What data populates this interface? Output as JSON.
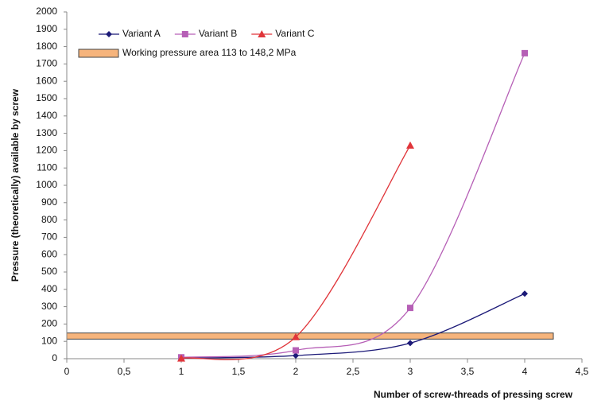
{
  "chart_data": {
    "type": "line",
    "xlabel": "Number of screw-threads of pressing screw",
    "ylabel": "Pressure (theoretically) available by screw",
    "xlim": [
      0,
      4.5
    ],
    "ylim": [
      0,
      2000
    ],
    "xticks": [
      0,
      {
        "value": 0.5,
        "label": "0,5"
      },
      1,
      {
        "value": 1.5,
        "label": "1,5"
      },
      2,
      {
        "value": 2.5,
        "label": "2,5"
      },
      3,
      {
        "value": 3.5,
        "label": "3,5"
      },
      4,
      {
        "value": 4.5,
        "label": "4,5"
      }
    ],
    "yticks": [
      0,
      100,
      200,
      300,
      400,
      500,
      600,
      700,
      800,
      900,
      1000,
      1100,
      1200,
      1300,
      1400,
      1500,
      1600,
      1700,
      1800,
      1900,
      2000
    ],
    "grid": false,
    "legend": "top-left",
    "series": [
      {
        "name": "Variant A",
        "color": "#1c1a78",
        "marker": "diamond",
        "x": [
          1,
          2,
          3,
          4
        ],
        "values": [
          3,
          18,
          90,
          375
        ]
      },
      {
        "name": "Variant B",
        "color": "#b65fb6",
        "marker": "square",
        "x": [
          1,
          2,
          3,
          4
        ],
        "values": [
          8,
          48,
          293,
          1762
        ]
      },
      {
        "name": "Variant C",
        "color": "#e0353a",
        "marker": "triangle",
        "x": [
          1,
          2,
          3
        ],
        "values": [
          2,
          125,
          1230
        ]
      }
    ],
    "band": {
      "name": "Working pressure area 113 to 148,2 MPa",
      "ymin": 113,
      "ymax": 148.2,
      "xmin": 0,
      "xmax": 4.25,
      "color": "#f6b47c"
    }
  }
}
